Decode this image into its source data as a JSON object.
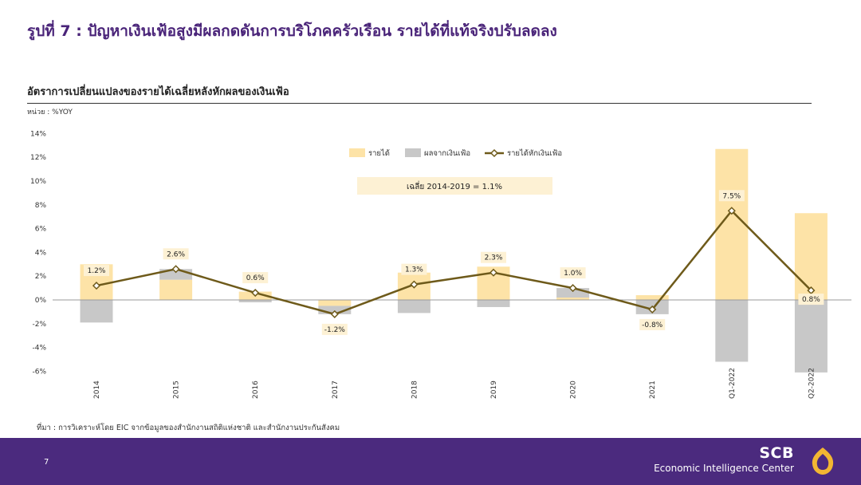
{
  "page": {
    "title": "รูปที่ 7 : ปัญหาเงินเฟ้อสูงมีผลกดดันการบริโภคครัวเรือน  รายได้ที่แท้จริงปรับลดลง",
    "chart_subtitle": "อัตราการเปลี่ยนแปลงของรายได้เฉลี่ยหลังหักผลของเงินเฟ้อ",
    "unit": "หน่วย : %YOY",
    "source": "ที่มา : การวิเคราะห์โดย EIC จากข้อมูลของสำนักงานสถิติแห่งชาติ และสำนักงานประกันสังคม",
    "page_number": "7",
    "brand_name": "SCB",
    "brand_subtitle": "Economic Intelligence Center"
  },
  "colors": {
    "title": "#4a2479",
    "income": "#fde3a7",
    "inflation": "#c8c8c8",
    "real_income": "#6e5a1a",
    "footer": "#4b2a7e",
    "logo": "#f2b632"
  },
  "chart_data": {
    "type": "bar",
    "categories": [
      "2014",
      "2015",
      "2016",
      "2017",
      "2018",
      "2019",
      "2020",
      "2021",
      "Q1-2022",
      "Q2-2022"
    ],
    "ylim": [
      -6,
      14
    ],
    "yticks": [
      -6,
      -4,
      -2,
      0,
      2,
      4,
      6,
      8,
      10,
      12,
      14
    ],
    "ytick_labels": [
      "-6%",
      "-4%",
      "-2%",
      "0%",
      "2%",
      "4%",
      "6%",
      "8%",
      "10%",
      "12%",
      "14%"
    ],
    "grid": false,
    "legend_position": "top-center",
    "series": [
      {
        "name": "รายได้",
        "type": "bar",
        "values": [
          3.0,
          1.7,
          0.7,
          -0.5,
          2.3,
          2.8,
          0.2,
          0.4,
          12.7,
          7.3
        ]
      },
      {
        "name": "ผลจากเงินเฟ้อ",
        "type": "bar",
        "values": [
          -1.9,
          0.9,
          -0.2,
          -0.7,
          -1.1,
          -0.6,
          0.8,
          -1.2,
          -5.2,
          -6.1
        ]
      },
      {
        "name": "รายได้หักเงินเฟ้อ",
        "type": "line",
        "values": [
          1.2,
          2.6,
          0.6,
          -1.2,
          1.3,
          2.3,
          1.0,
          -0.8,
          7.5,
          0.8
        ]
      }
    ],
    "data_labels": [
      "1.2%",
      "2.6%",
      "0.6%",
      "-1.2%",
      "1.3%",
      "2.3%",
      "1.0%",
      "-0.8%",
      "7.5%",
      "0.8%"
    ],
    "annotation": "เฉลี่ย  2014-2019  =  1.1%"
  }
}
